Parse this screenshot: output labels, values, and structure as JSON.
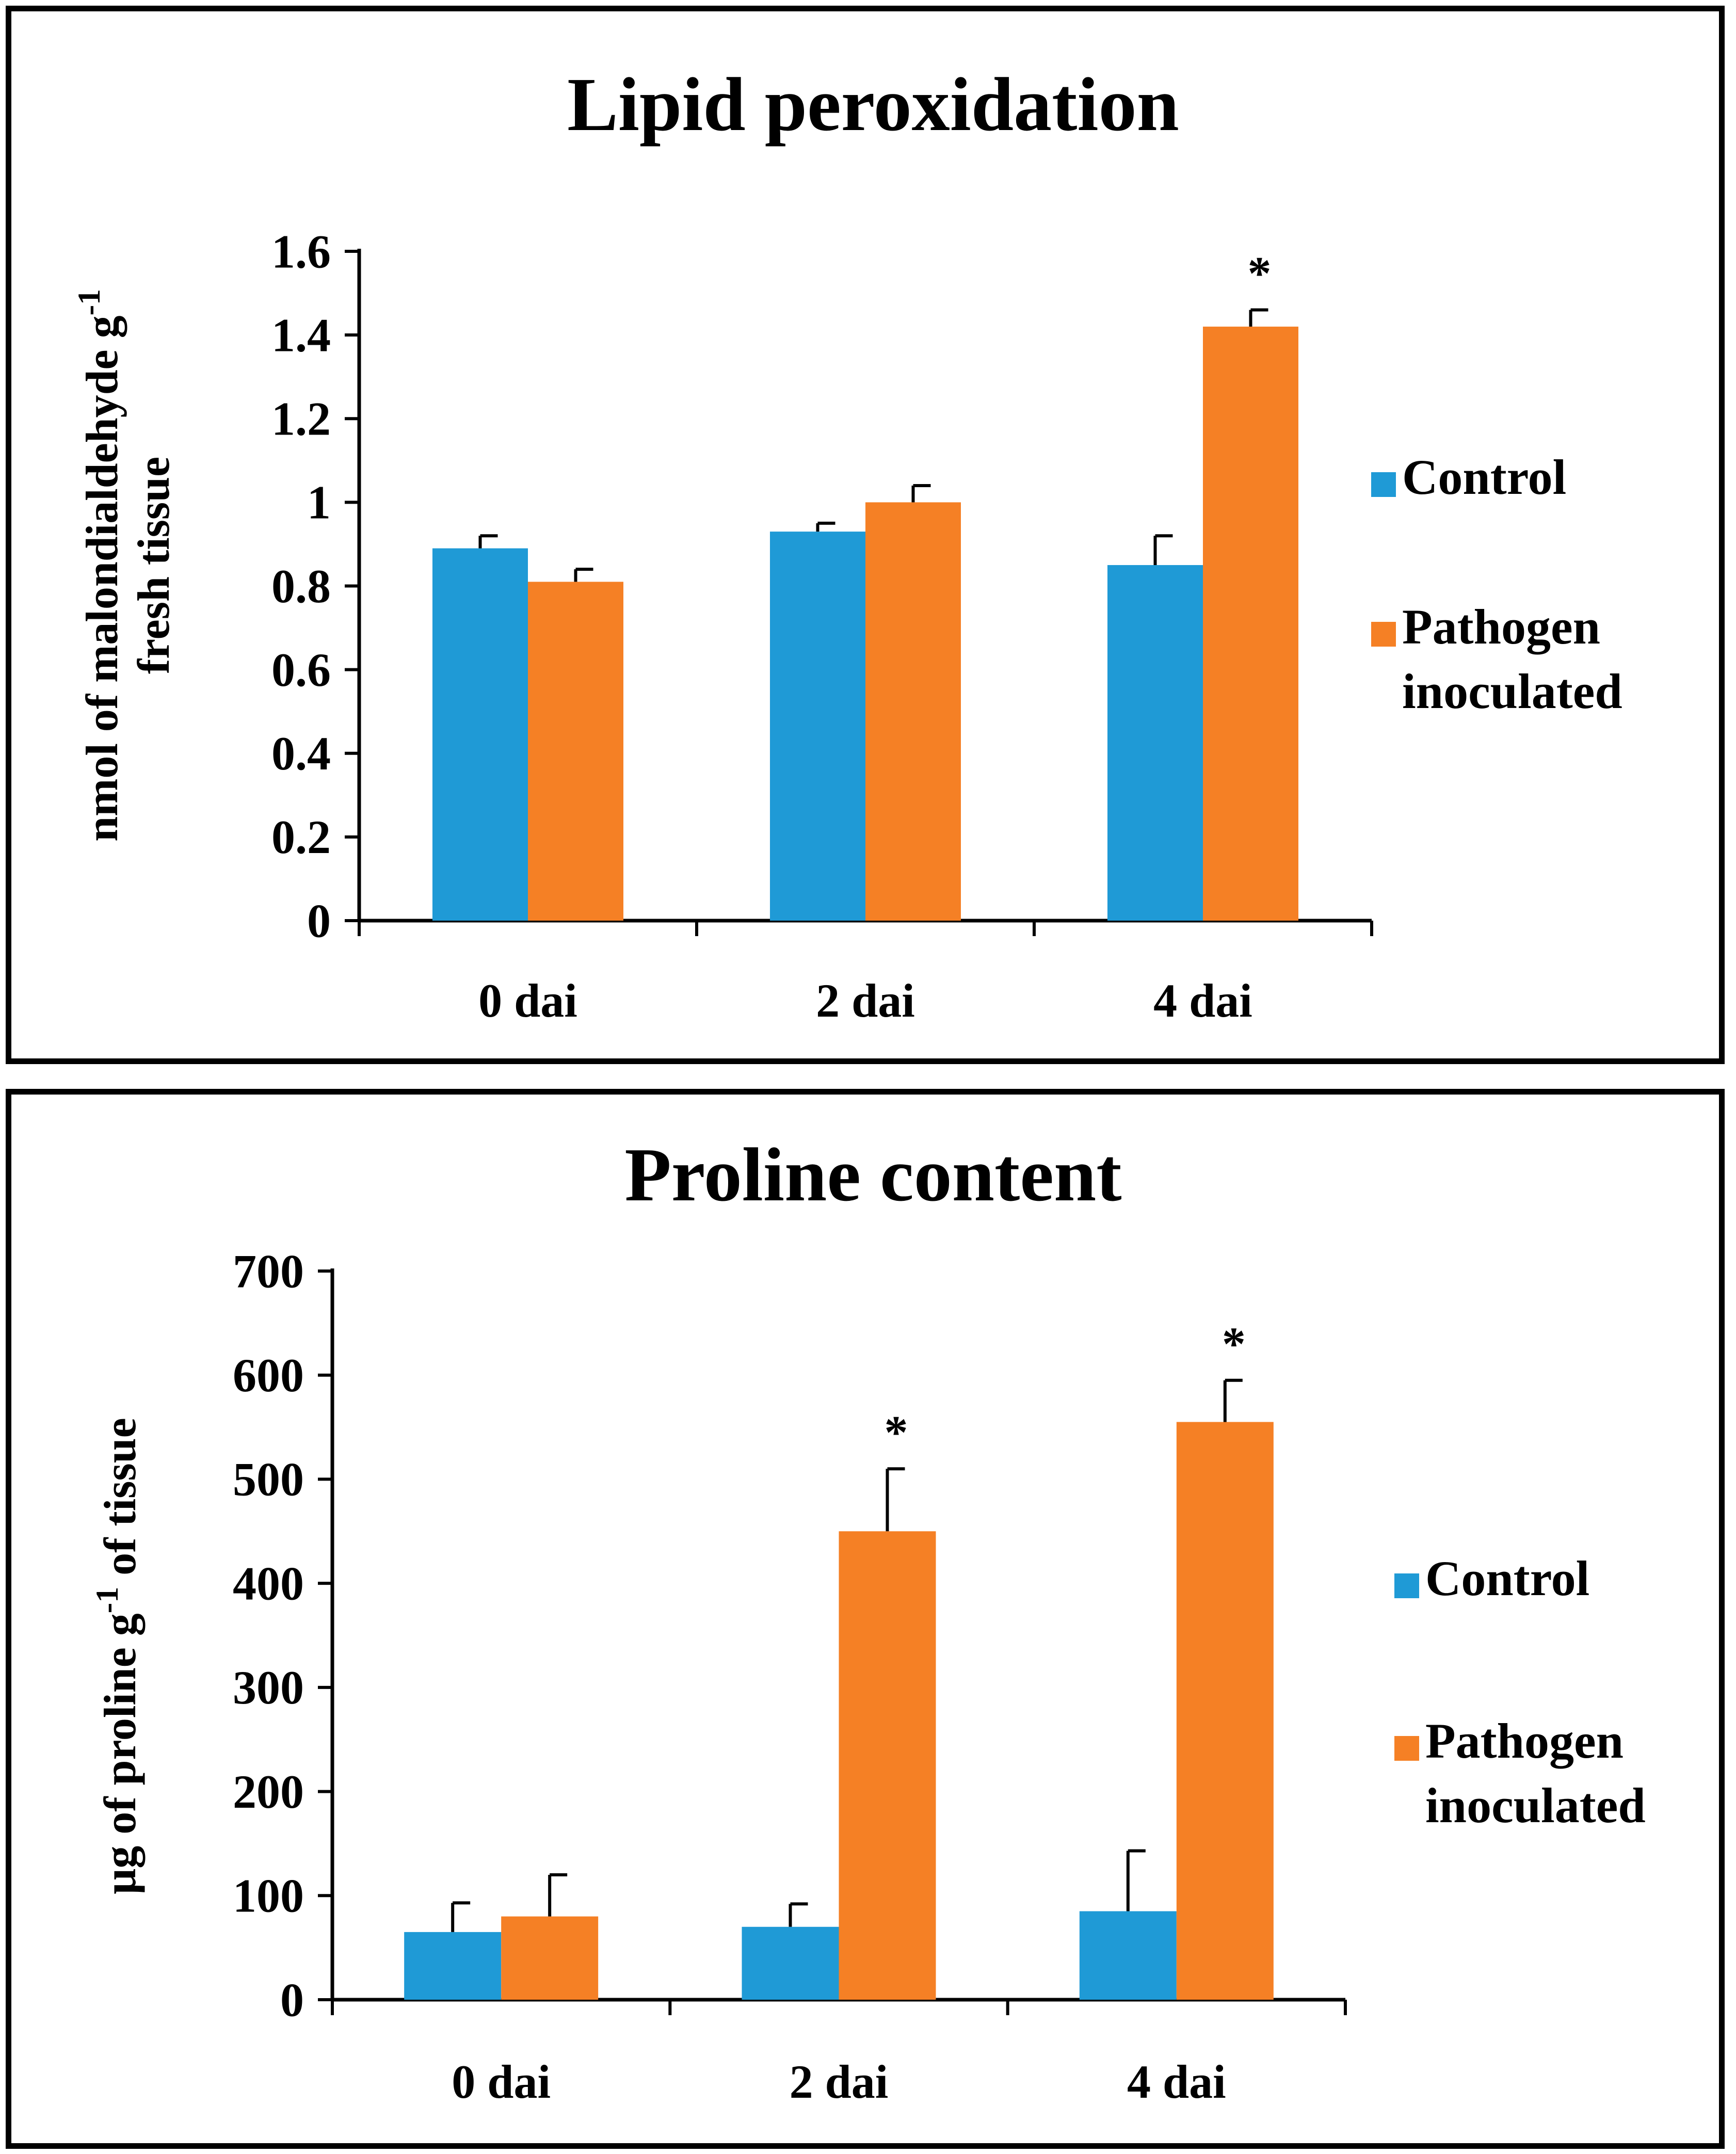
{
  "chart_data": [
    {
      "type": "bar",
      "title": "Lipid peroxidation",
      "ylabel_line1": "nmol of malondialdehyde g",
      "ylabel_sup": "-1",
      "ylabel_line2": "fresh tissue",
      "xlabel": "",
      "categories": [
        "0 dai",
        "2 dai",
        "4 dai"
      ],
      "ylim": [
        0,
        1.6
      ],
      "yticks": [
        "0",
        "0.2",
        "0.4",
        "0.6",
        "0.8",
        "1",
        "1.2",
        "1.4",
        "1.6"
      ],
      "series": [
        {
          "name": "Control",
          "values": [
            0.89,
            0.93,
            0.85
          ],
          "errors": [
            0.03,
            0.02,
            0.07
          ]
        },
        {
          "name": "Pathogen inoculated",
          "values": [
            0.81,
            1.0,
            1.42
          ],
          "errors": [
            0.03,
            0.04,
            0.04
          ]
        }
      ],
      "significance": [
        "",
        "",
        "*"
      ],
      "legend": {
        "placement": "right",
        "items": [
          {
            "lines": [
              "Control"
            ],
            "color": "#1f9ad6"
          },
          {
            "lines": [
              "Pathogen",
              "inoculated"
            ],
            "color": "#f58025"
          }
        ]
      },
      "colors": [
        "#1f9ad6",
        "#f58025"
      ]
    },
    {
      "type": "bar",
      "title": "Proline content",
      "ylabel_line1": "μg of proline g",
      "ylabel_sup": "-1",
      "ylabel_after": " of tissue",
      "xlabel": "",
      "categories": [
        "0 dai",
        "2 dai",
        "4 dai"
      ],
      "ylim": [
        0,
        700
      ],
      "yticks": [
        "0",
        "100",
        "200",
        "300",
        "400",
        "500",
        "600",
        "700"
      ],
      "series": [
        {
          "name": "Control",
          "values": [
            65,
            70,
            85
          ],
          "errors": [
            28,
            22,
            58
          ]
        },
        {
          "name": "Pathogen inoculated",
          "values": [
            80,
            450,
            555
          ],
          "errors": [
            40,
            60,
            40
          ]
        }
      ],
      "significance": [
        "",
        "*",
        "*"
      ],
      "legend": {
        "placement": "right",
        "items": [
          {
            "lines": [
              "Control"
            ],
            "color": "#1f9ad6"
          },
          {
            "lines": [
              "Pathogen",
              "inoculated"
            ],
            "color": "#f58025"
          }
        ]
      },
      "colors": [
        "#1f9ad6",
        "#f58025"
      ]
    }
  ]
}
